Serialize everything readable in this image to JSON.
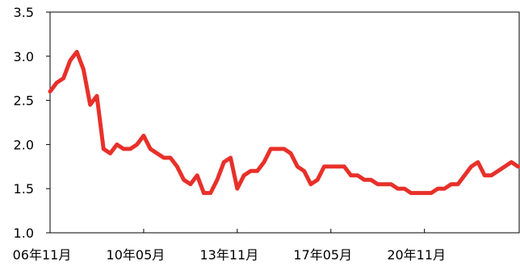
{
  "chart_data": {
    "type": "line",
    "x": [
      "06年11月",
      "07年02月",
      "07年05月",
      "07年08月",
      "07年11月",
      "08年02月",
      "08年05月",
      "08年08月",
      "08年11月",
      "09年02月",
      "09年05月",
      "09年08月",
      "09年11月",
      "10年02月",
      "10年05月",
      "10年08月",
      "10年11月",
      "11年02月",
      "11年05月",
      "11年08月",
      "11年11月",
      "12年02月",
      "12年05月",
      "12年08月",
      "12年11月",
      "13年02月",
      "13年05月",
      "13年08月",
      "13年11月",
      "14年02月",
      "14年05月",
      "14年08月",
      "14年11月",
      "15年02月",
      "15年05月",
      "15年08月",
      "15年11月",
      "16年02月",
      "16年05月",
      "16年08月",
      "16年11月",
      "17年02月",
      "17年05月",
      "17年08月",
      "17年11月",
      "18年02月",
      "18年05月",
      "18年08月",
      "18年11月",
      "19年02月",
      "19年05月",
      "19年08月",
      "19年11月",
      "20年02月",
      "20年05月",
      "20年08月",
      "20年11月",
      "21年02月",
      "21年05月",
      "21年08月",
      "21年11月",
      "22年02月",
      "22年05月",
      "22年08月",
      "22年11月",
      "23年02月",
      "23年05月",
      "23年08月",
      "23年11月",
      "24年02月",
      "24年05月"
    ],
    "series": [
      {
        "color": "#e8302a",
        "values": [
          2.6,
          2.7,
          2.75,
          2.95,
          3.05,
          2.85,
          2.45,
          2.55,
          1.95,
          1.9,
          2.0,
          1.95,
          1.95,
          2.0,
          2.1,
          1.95,
          1.9,
          1.85,
          1.85,
          1.75,
          1.6,
          1.55,
          1.65,
          1.45,
          1.45,
          1.6,
          1.8,
          1.85,
          1.5,
          1.65,
          1.7,
          1.7,
          1.8,
          1.95,
          1.95,
          1.95,
          1.9,
          1.75,
          1.7,
          1.55,
          1.6,
          1.75,
          1.75,
          1.75,
          1.75,
          1.65,
          1.65,
          1.6,
          1.6,
          1.55,
          1.55,
          1.55,
          1.5,
          1.5,
          1.45,
          1.45,
          1.45,
          1.45,
          1.5,
          1.5,
          1.55,
          1.55,
          1.65,
          1.75,
          1.8,
          1.65,
          1.65,
          1.7,
          1.75,
          1.8,
          1.75
        ]
      }
    ],
    "xticks": [
      "06年11月",
      "10年05月",
      "13年11月",
      "17年05月",
      "20年11月"
    ],
    "ylim": [
      1,
      3.5
    ],
    "yticks": [
      {
        "value": 1,
        "label": "1.0"
      },
      1.5,
      {
        "value": 2,
        "label": "2.0"
      },
      2.5,
      {
        "value": 3,
        "label": "3.0"
      },
      3.5
    ]
  }
}
